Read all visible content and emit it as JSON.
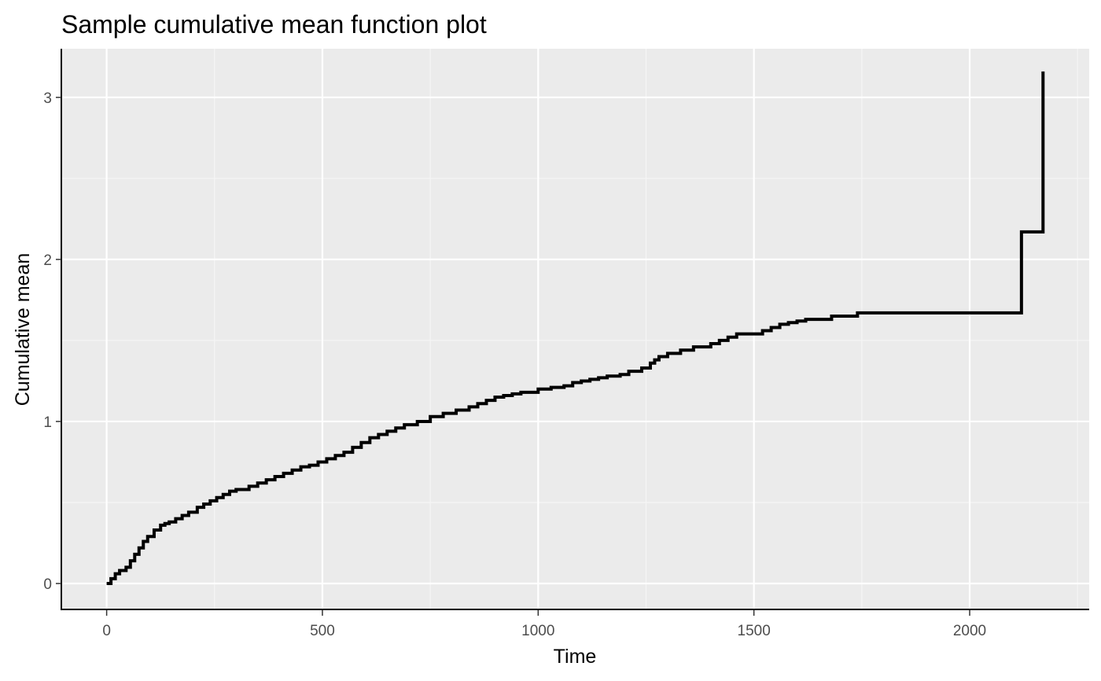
{
  "chart_data": {
    "type": "line",
    "step": true,
    "title": "Sample cumulative mean function plot",
    "xlabel": "Time",
    "ylabel": "Cumulative mean",
    "xlim": [
      -105,
      2277
    ],
    "ylim": [
      -0.16,
      3.3
    ],
    "x_ticks": [
      0,
      500,
      1000,
      1500,
      2000
    ],
    "x_tick_labels": [
      "0",
      "500",
      "1000",
      "1500",
      "2000"
    ],
    "y_ticks": [
      0,
      1,
      2,
      3
    ],
    "y_tick_labels": [
      "0",
      "1",
      "2",
      "3"
    ],
    "grid": true,
    "legend": "none",
    "colors": {
      "panel_background": "#ebebeb",
      "grid_major": "#ffffff",
      "grid_minor": "#f5f5f5",
      "line": "#000000",
      "axis": "#000000"
    },
    "series": [
      {
        "x": [
          0,
          10,
          20,
          30,
          45,
          55,
          65,
          75,
          85,
          95,
          110,
          125,
          135,
          145,
          160,
          175,
          190,
          210,
          225,
          240,
          255,
          270,
          285,
          300,
          330,
          350,
          370,
          390,
          410,
          430,
          450,
          470,
          490,
          510,
          530,
          550,
          570,
          590,
          610,
          630,
          650,
          670,
          690,
          720,
          750,
          780,
          810,
          840,
          860,
          880,
          900,
          920,
          940,
          960,
          1000,
          1030,
          1060,
          1080,
          1100,
          1120,
          1140,
          1160,
          1190,
          1210,
          1240,
          1260,
          1270,
          1280,
          1300,
          1330,
          1360,
          1400,
          1420,
          1440,
          1460,
          1520,
          1540,
          1560,
          1580,
          1600,
          1620,
          1680,
          1740,
          2120,
          2170
        ],
        "y": [
          0,
          0.03,
          0.06,
          0.08,
          0.1,
          0.14,
          0.18,
          0.22,
          0.26,
          0.29,
          0.33,
          0.36,
          0.37,
          0.38,
          0.4,
          0.42,
          0.44,
          0.47,
          0.49,
          0.51,
          0.53,
          0.55,
          0.57,
          0.58,
          0.6,
          0.62,
          0.64,
          0.66,
          0.68,
          0.7,
          0.72,
          0.73,
          0.75,
          0.77,
          0.79,
          0.81,
          0.84,
          0.87,
          0.9,
          0.92,
          0.94,
          0.96,
          0.98,
          1.0,
          1.03,
          1.05,
          1.07,
          1.09,
          1.11,
          1.13,
          1.15,
          1.16,
          1.17,
          1.18,
          1.2,
          1.21,
          1.22,
          1.24,
          1.25,
          1.26,
          1.27,
          1.28,
          1.29,
          1.31,
          1.33,
          1.36,
          1.38,
          1.4,
          1.42,
          1.44,
          1.46,
          1.48,
          1.5,
          1.52,
          1.54,
          1.56,
          1.58,
          1.6,
          1.61,
          1.62,
          1.63,
          1.65,
          1.67,
          2.17,
          3.16
        ]
      }
    ]
  }
}
